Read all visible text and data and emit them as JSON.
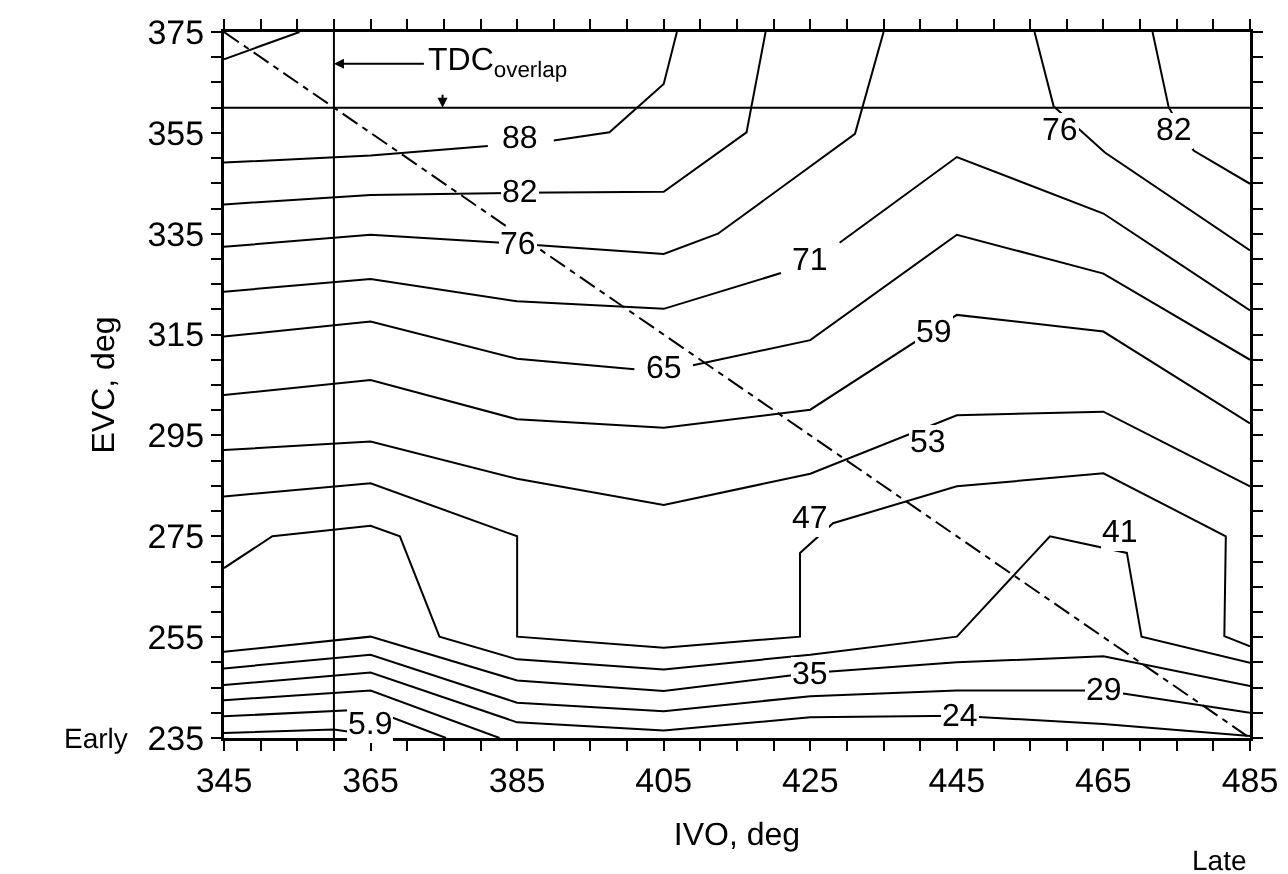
{
  "chart_data": {
    "type": "line",
    "xlabel": "IVO, deg",
    "ylabel": "EVC, deg",
    "grid": false,
    "xlim": [
      345,
      485
    ],
    "ylim": [
      235,
      375
    ],
    "xticks": [
      345,
      {
        "value": 350,
        "label": null
      },
      {
        "value": 355,
        "label": null
      },
      {
        "value": 360,
        "label": null
      },
      365,
      {
        "value": 370,
        "label": null
      },
      {
        "value": 375,
        "label": null
      },
      {
        "value": 380,
        "label": null
      },
      385,
      {
        "value": 390,
        "label": null
      },
      {
        "value": 395,
        "label": null
      },
      {
        "value": 400,
        "label": null
      },
      405,
      {
        "value": 410,
        "label": null
      },
      {
        "value": 415,
        "label": null
      },
      {
        "value": 420,
        "label": null
      },
      425,
      {
        "value": 430,
        "label": null
      },
      {
        "value": 435,
        "label": null
      },
      {
        "value": 440,
        "label": null
      },
      445,
      {
        "value": 450,
        "label": null
      },
      {
        "value": 455,
        "label": null
      },
      {
        "value": 460,
        "label": null
      },
      465,
      {
        "value": 470,
        "label": null
      },
      {
        "value": 475,
        "label": null
      },
      {
        "value": 480,
        "label": null
      },
      485
    ],
    "yticks": [
      235,
      {
        "value": 240,
        "label": null
      },
      {
        "value": 245,
        "label": null
      },
      {
        "value": 250,
        "label": null
      },
      255,
      {
        "value": 260,
        "label": null
      },
      {
        "value": 265,
        "label": null
      },
      {
        "value": 270,
        "label": null
      },
      275,
      {
        "value": 280,
        "label": null
      },
      {
        "value": 285,
        "label": null
      },
      {
        "value": 290,
        "label": null
      },
      295,
      {
        "value": 300,
        "label": null
      },
      {
        "value": 305,
        "label": null
      },
      {
        "value": 310,
        "label": null
      },
      315,
      {
        "value": 320,
        "label": null
      },
      {
        "value": 325,
        "label": null
      },
      {
        "value": 330,
        "label": null
      },
      335,
      {
        "value": 340,
        "label": null
      },
      {
        "value": 345,
        "label": null
      },
      {
        "value": 350,
        "label": null
      },
      355,
      {
        "value": 360,
        "label": null
      },
      {
        "value": 365,
        "label": null
      },
      {
        "value": 370,
        "label": null
      },
      375
    ],
    "series": [
      {
        "color": "#000000",
        "x": [
          345,
          355.3
        ],
        "values": [
          369.6,
          375
        ]
      },
      {
        "color": "#000000",
        "x": [
          345,
          365,
          381,
          null,
          390,
          397.6,
          405,
          406.8
        ],
        "values": [
          349.1,
          350.5,
          352.4,
          null,
          353.5,
          355.1,
          364.7,
          375
        ]
      },
      {
        "color": "#000000",
        "x": [
          345,
          365,
          385,
          405,
          416.3,
          418.9,
          null,
          471.7,
          473.9,
          477.3,
          485
        ],
        "values": [
          340.8,
          342.7,
          343.1,
          343.3,
          355.1,
          375,
          null,
          375,
          360.1,
          351.5,
          344.9
        ]
      },
      {
        "color": "#000000",
        "x": [
          345,
          365,
          385,
          405,
          412.4,
          431.1,
          435,
          null,
          455.6,
          458.2,
          465.2,
          485
        ],
        "values": [
          332.4,
          334.8,
          333.0,
          331.0,
          335.0,
          354.8,
          375,
          null,
          375,
          360.3,
          351.1,
          331.7
        ]
      },
      {
        "color": "#000000",
        "x": [
          345,
          365,
          385,
          405,
          421,
          null,
          429,
          445,
          465,
          485
        ],
        "values": [
          323.5,
          326.0,
          321.6,
          320.1,
          327.2,
          null,
          333.2,
          350.2,
          339.0,
          319.8
        ]
      },
      {
        "color": "#000000",
        "x": [
          345,
          365,
          385,
          401,
          null,
          409,
          425,
          445,
          465,
          485
        ],
        "values": [
          314.6,
          317.6,
          310.2,
          308.1,
          null,
          308.9,
          313.9,
          334.8,
          327.1,
          310.0
        ]
      },
      {
        "color": "#000000",
        "x": [
          345,
          365,
          385,
          405,
          425,
          445,
          465,
          485
        ],
        "values": [
          303.0,
          306.0,
          298.2,
          296.5,
          300.1,
          318.9,
          315.6,
          297.4
        ]
      },
      {
        "color": "#000000",
        "x": [
          345,
          365,
          385,
          405,
          425,
          445,
          465,
          485
        ],
        "values": [
          292.1,
          293.8,
          286.4,
          281.2,
          287.4,
          299.0,
          299.7,
          284.9
        ]
      },
      {
        "color": "#000000",
        "x": [
          345,
          365,
          385,
          385,
          405,
          423.6,
          423.6,
          428.1,
          445,
          465,
          481.7,
          481.5,
          485
        ],
        "values": [
          282.9,
          285.5,
          275.0,
          255.1,
          252.9,
          255.1,
          271.7,
          277.6,
          284.9,
          287.5,
          275.0,
          255.2,
          253.2
        ]
      },
      {
        "color": "#000000",
        "x": [
          345,
          351.6,
          365,
          369,
          374.4,
          385,
          405,
          425,
          445,
          457.7,
          468.2,
          470.2,
          485
        ],
        "values": [
          268.7,
          275.0,
          277.1,
          275.0,
          255.1,
          250.6,
          248.6,
          251.5,
          255.1,
          275.0,
          271.7,
          255.1,
          249.9
        ]
      },
      {
        "color": "#000000",
        "x": [
          345,
          365,
          385,
          405,
          425,
          445,
          465,
          485
        ],
        "values": [
          252.1,
          255.1,
          246.4,
          244.3,
          247.9,
          250.0,
          251.2,
          245.3
        ]
      },
      {
        "color": "#000000",
        "x": [
          345,
          365,
          385,
          405,
          425,
          445,
          465,
          485
        ],
        "values": [
          248.8,
          251.5,
          242.0,
          240.3,
          243.3,
          244.4,
          244.4,
          240.0
        ]
      },
      {
        "color": "#000000",
        "x": [
          345,
          365,
          385,
          405,
          425,
          445,
          465,
          485
        ],
        "values": [
          245.5,
          248.0,
          238.1,
          236.5,
          239.1,
          239.4,
          237.8,
          235.4
        ]
      },
      {
        "color": "#000000",
        "x": [
          345,
          365,
          382.6
        ],
        "values": [
          242.5,
          244.4,
          235
        ]
      },
      {
        "color": "#000000",
        "x": [
          345,
          365,
          375.3
        ],
        "values": [
          239.3,
          240.7,
          235
        ]
      },
      {
        "color": "#000000",
        "x": [
          345,
          360,
          368
        ],
        "values": [
          236.0,
          236.7,
          235
        ]
      },
      {
        "color": "#000000",
        "line_style": "dashed",
        "x": [
          345,
          485
        ],
        "values": [
          375,
          235
        ]
      }
    ],
    "ref_lines": [
      {
        "axis": "x",
        "value": 360,
        "label": "TDC$_{overlap}$"
      },
      {
        "axis": "y",
        "value": 360,
        "label": null
      }
    ],
    "annotations": [
      "Early",
      "Late",
      {
        "text": "88",
        "x": 385.3,
        "y": 353.8
      },
      {
        "text": "82",
        "x": 385.3,
        "y": 342.9
      },
      {
        "text": "76",
        "x": 385,
        "y": 332.6
      },
      {
        "text": "71",
        "x": 425,
        "y": 329.7
      },
      {
        "text": "65",
        "x": 405,
        "y": 308.2
      },
      {
        "text": "59",
        "x": 441.9,
        "y": 315.2
      },
      {
        "text": "53",
        "x": 441,
        "y": 293.5
      },
      {
        "text": "47",
        "x": 425,
        "y": 278.3
      },
      {
        "text": "41",
        "x": 467.3,
        "y": 275.6
      },
      {
        "text": "35",
        "x": 425,
        "y": 247.6
      },
      {
        "text": "29",
        "x": 465.2,
        "y": 244.4
      },
      {
        "text": "24",
        "x": 445.4,
        "y": 239.0
      },
      {
        "text": "76",
        "x": 459.1,
        "y": 355.5
      },
      {
        "text": "82",
        "x": 474.6,
        "y": 355.5
      },
      {
        "text": "5.9",
        "x": 365,
        "y": 237.6
      }
    ]
  }
}
